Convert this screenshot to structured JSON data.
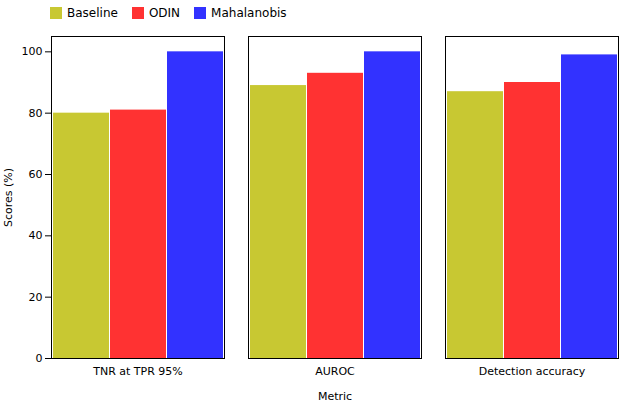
{
  "chart_data": {
    "type": "bar",
    "categories": [
      "TNR at TPR 95%",
      "AUROC",
      "Detection accuracy"
    ],
    "series": [
      {
        "name": "Baseline",
        "color": "#c8c832",
        "values": [
          80,
          89,
          87
        ]
      },
      {
        "name": "ODIN",
        "color": "#ff3232",
        "values": [
          81,
          93,
          90
        ]
      },
      {
        "name": "Mahalanobis",
        "color": "#3232ff",
        "values": [
          100,
          100,
          99
        ]
      }
    ],
    "xlabel": "Metric",
    "ylabel": "Scores (%)",
    "ylim": [
      0,
      105
    ],
    "yticks": [
      0,
      20,
      40,
      60,
      80,
      100
    ],
    "grid": false,
    "legend": "upper left"
  }
}
